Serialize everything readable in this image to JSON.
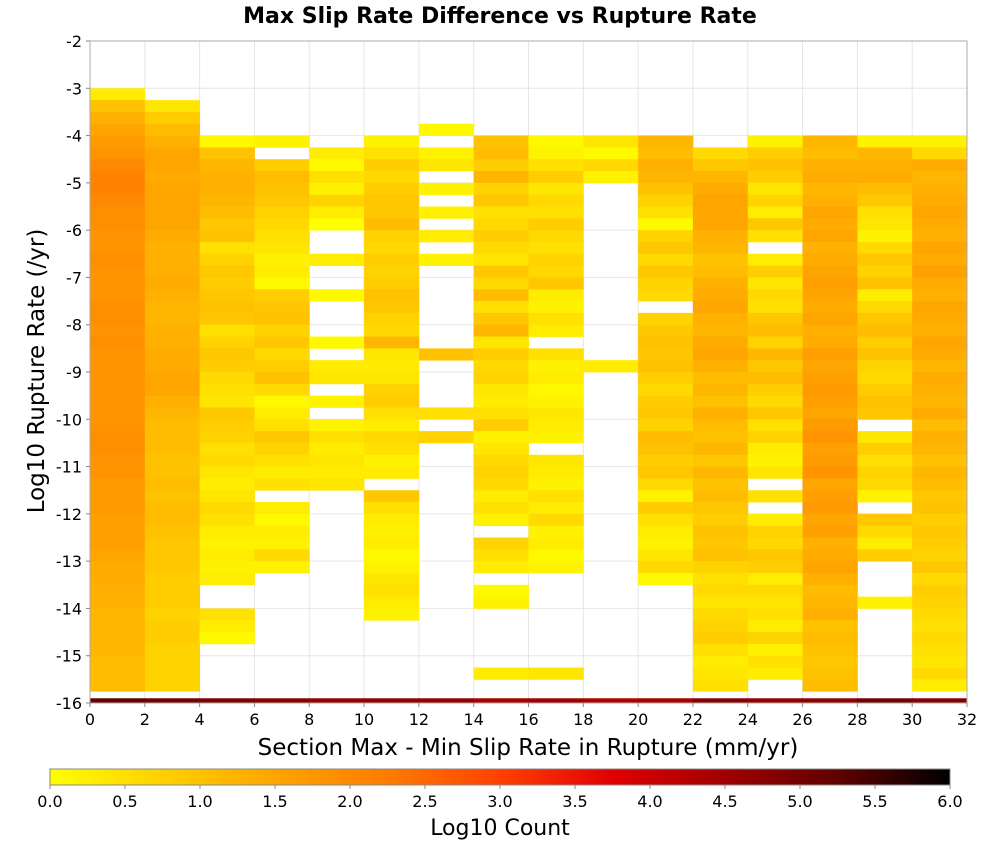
{
  "chart_data": {
    "type": "heatmap",
    "title": "Max Slip Rate Difference vs Rupture Rate",
    "xlabel": "Section Max - Min Slip Rate in Rupture (mm/yr)",
    "ylabel": "Log10 Rupture Rate (/yr)",
    "xlim": [
      0,
      32
    ],
    "ylim": [
      -16,
      -2
    ],
    "x_ticks": [
      "0",
      "2",
      "4",
      "6",
      "8",
      "10",
      "12",
      "14",
      "16",
      "18",
      "20",
      "22",
      "24",
      "26",
      "28",
      "30",
      "32"
    ],
    "y_ticks": [
      "-2",
      "-3",
      "-4",
      "-5",
      "-6",
      "-7",
      "-8",
      "-9",
      "-10",
      "-11",
      "-12",
      "-13",
      "-14",
      "-15",
      "-16"
    ],
    "x_bin_width": 2,
    "y_bin_height": 0.25,
    "grid": true,
    "colorbar": {
      "label": "Log10 Count",
      "min": 0.0,
      "max": 6.0,
      "ticks": [
        "0.0",
        "0.5",
        "1.0",
        "1.5",
        "2.0",
        "2.5",
        "3.0",
        "3.5",
        "4.0",
        "4.5",
        "5.0",
        "5.5",
        "6.0"
      ],
      "stops": [
        "#ffff00",
        "#ffd000",
        "#ffa500",
        "#ff7b00",
        "#ff4000",
        "#e00000",
        "#a00000",
        "#600000",
        "#000000"
      ]
    },
    "columns": [
      {
        "x": 0,
        "y_top": -3.0,
        "levels": [
          0.3,
          1.0,
          1.3,
          1.5,
          1.7,
          1.8,
          2.0,
          2.1,
          2.1,
          2.0,
          1.9,
          1.9,
          1.8,
          1.8,
          1.9,
          1.8,
          1.8,
          1.8,
          1.9,
          1.9,
          1.8,
          1.9,
          1.8,
          1.8,
          1.8,
          1.8,
          1.8,
          1.8,
          1.8,
          1.9,
          1.9,
          1.8,
          1.8,
          1.7,
          1.7,
          1.7,
          1.6,
          1.6,
          1.6,
          1.5,
          1.4,
          1.4,
          1.3,
          1.3,
          1.2,
          1.2,
          1.2,
          1.2,
          1.1,
          1.1,
          1.1,
          1.1
        ]
      },
      {
        "x": 2,
        "y_top": -3.25,
        "levels": [
          0.4,
          0.8,
          1.1,
          1.3,
          1.5,
          1.5,
          1.4,
          1.5,
          1.5,
          1.5,
          1.5,
          1.4,
          1.3,
          1.3,
          1.3,
          1.4,
          1.3,
          1.2,
          1.2,
          1.3,
          1.3,
          1.4,
          1.4,
          1.5,
          1.5,
          1.3,
          1.2,
          1.1,
          1.1,
          1.1,
          1.0,
          1.0,
          1.1,
          1.0,
          1.1,
          1.1,
          1.0,
          0.9,
          0.9,
          0.9,
          0.8,
          0.8,
          0.8,
          0.7,
          0.8,
          0.8,
          0.7,
          0.7,
          0.7,
          0.7,
          0.7
        ]
      },
      {
        "x": 4,
        "y_top": -4.0,
        "levels": [
          0.1,
          1.0,
          1.2,
          1.3,
          1.3,
          1.2,
          1.1,
          0.9,
          1.0,
          0.5,
          0.7,
          0.9,
          0.8,
          0.9,
          1.0,
          0.9,
          0.5,
          0.7,
          0.9,
          0.8,
          0.6,
          0.5,
          0.4,
          0.9,
          0.8,
          0.7,
          0.5,
          0.6,
          0.4,
          0.3,
          0.4,
          0.6,
          0.5,
          0.3,
          0.2,
          0.3,
          0.2,
          0.3,
          -1,
          -1,
          0.5,
          0.3,
          0.1,
          -1
        ]
      },
      {
        "x": 6,
        "y_top": -4.0,
        "levels": [
          0.2,
          -1,
          0.8,
          1.1,
          1.0,
          0.9,
          0.7,
          0.6,
          0.5,
          0.4,
          0.2,
          0.3,
          0.1,
          0.8,
          0.9,
          1.0,
          0.7,
          0.9,
          0.6,
          0.8,
          1.0,
          0.6,
          0.1,
          0.3,
          0.5,
          0.9,
          0.7,
          0.5,
          0.3,
          0.5,
          -1,
          0.3,
          0.1,
          0.3,
          0.2,
          0.6,
          0.2,
          -1
        ]
      },
      {
        "x": 8,
        "y_top": -4.25,
        "levels": [
          0.3,
          0.1,
          0.5,
          0.2,
          0.7,
          0.3,
          0.0,
          -1,
          -1,
          0.3,
          -1,
          -1,
          0.1,
          -1,
          -1,
          -1,
          0.1,
          -1,
          0.3,
          0.4,
          -1,
          0.2,
          -1,
          0.2,
          0.5,
          0.3,
          0.4,
          0.3,
          0.4
        ]
      },
      {
        "x": 10,
        "y_top": -4.0,
        "levels": [
          0.2,
          0.5,
          0.8,
          0.6,
          0.8,
          0.9,
          0.9,
          1.1,
          0.7,
          0.6,
          0.8,
          0.7,
          0.8,
          1.0,
          0.9,
          0.7,
          0.6,
          1.2,
          0.4,
          0.3,
          0.4,
          0.7,
          0.8,
          0.5,
          0.3,
          0.6,
          0.5,
          0.2,
          0.3,
          -1,
          0.9,
          0.5,
          0.3,
          0.2,
          0.3,
          0.1,
          0.2,
          0.4,
          0.5,
          0.3,
          0.2
        ]
      },
      {
        "x": 12,
        "y_top": -3.75,
        "levels": [
          0.1,
          -1,
          0.2,
          0.4,
          -1,
          0.2,
          -1,
          0.2,
          -1,
          0.3,
          -1,
          0.2,
          -1,
          -1,
          -1,
          -1,
          -1,
          -1,
          -1,
          1.0,
          -1,
          -1,
          -1,
          -1,
          0.5,
          -1,
          0.7
        ]
      },
      {
        "x": 14,
        "y_top": -4.0,
        "levels": [
          1.0,
          1.1,
          0.8,
          1.2,
          0.7,
          0.9,
          0.5,
          0.6,
          0.8,
          0.6,
          0.4,
          0.9,
          0.6,
          1.1,
          0.5,
          0.9,
          1.2,
          0.4,
          0.8,
          0.6,
          0.7,
          0.4,
          0.3,
          0.5,
          0.8,
          0.2,
          0.4,
          0.6,
          0.7,
          0.6,
          0.3,
          0.5,
          0.2,
          -1,
          0.7,
          0.5,
          0.3,
          -1,
          0.1,
          0.2,
          -1,
          -1,
          -1,
          -1,
          -1,
          0.3
        ]
      },
      {
        "x": 16,
        "y_top": -4.0,
        "levels": [
          0.1,
          0.2,
          0.5,
          0.8,
          0.4,
          0.6,
          0.5,
          0.8,
          0.6,
          0.5,
          0.7,
          0.6,
          0.9,
          0.3,
          0.2,
          0.5,
          0.3,
          -1,
          0.5,
          0.2,
          0.3,
          0.1,
          0.2,
          0.4,
          0.3,
          0.2,
          -1,
          0.4,
          0.3,
          0.2,
          0.5,
          0.3,
          0.6,
          0.2,
          0.3,
          0.1,
          0.2,
          -1,
          -1,
          -1,
          -1,
          -1,
          -1,
          -1,
          -1,
          0.4
        ]
      },
      {
        "x": 18,
        "y_top": -4.0,
        "levels": [
          0.4,
          0.1,
          0.6,
          0.2,
          -1,
          -1,
          -1,
          -1,
          -1,
          -1,
          -1,
          -1,
          -1,
          -1,
          -1,
          -1,
          -1,
          -1,
          -1,
          0.3
        ]
      },
      {
        "x": 20,
        "y_top": -4.0,
        "levels": [
          1.2,
          1.1,
          1.3,
          1.2,
          1.0,
          0.7,
          0.5,
          0.1,
          0.7,
          0.9,
          0.6,
          0.9,
          0.7,
          0.6,
          -1,
          0.7,
          0.9,
          1.0,
          0.9,
          1.0,
          0.8,
          0.6,
          0.8,
          0.9,
          0.7,
          1.1,
          1.0,
          0.8,
          0.9,
          0.6,
          0.2,
          0.8,
          0.5,
          0.3,
          0.2,
          0.4,
          0.6,
          0.1,
          -1
        ]
      },
      {
        "x": 22,
        "y_top": -4.25,
        "levels": [
          0.6,
          0.9,
          1.2,
          1.4,
          1.5,
          1.5,
          1.5,
          1.3,
          1.2,
          1.0,
          1.1,
          1.3,
          1.4,
          1.5,
          1.3,
          1.2,
          1.4,
          1.5,
          1.3,
          1.1,
          1.2,
          1.0,
          1.3,
          1.1,
          1.0,
          1.2,
          0.9,
          1.2,
          1.0,
          1.1,
          0.9,
          0.8,
          1.0,
          0.9,
          1.0,
          0.7,
          0.5,
          0.6,
          0.4,
          0.6,
          0.7,
          0.8,
          0.5,
          0.3,
          0.4,
          0.5,
          0.6,
          0.4
        ]
      },
      {
        "x": 24,
        "y_top": -4.0,
        "levels": [
          0.2,
          0.8,
          1.0,
          0.8,
          0.4,
          0.7,
          0.3,
          0.9,
          0.5,
          -1,
          0.3,
          0.8,
          0.4,
          0.6,
          0.5,
          0.9,
          1.1,
          0.7,
          1.2,
          0.9,
          1.1,
          0.8,
          0.6,
          0.9,
          0.5,
          0.7,
          0.3,
          0.2,
          0.4,
          -1,
          0.5,
          -1,
          0.3,
          0.7,
          0.6,
          0.9,
          0.8,
          0.3,
          0.6,
          0.4,
          0.5,
          0.3,
          0.7,
          0.2,
          0.5,
          0.3
        ]
      },
      {
        "x": 26,
        "y_top": -4.0,
        "levels": [
          1.2,
          1.1,
          1.3,
          1.4,
          1.2,
          1.3,
          1.5,
          1.4,
          1.5,
          1.3,
          1.4,
          1.5,
          1.6,
          1.5,
          1.4,
          1.5,
          1.3,
          1.4,
          1.6,
          1.5,
          1.6,
          1.7,
          1.6,
          1.5,
          1.7,
          1.8,
          1.6,
          1.7,
          1.8,
          1.5,
          1.6,
          1.7,
          1.5,
          1.6,
          1.3,
          1.4,
          1.5,
          1.3,
          1.1,
          1.2,
          1.3,
          1.0,
          1.1,
          1.0,
          0.9,
          1.0,
          1.1,
          0.9,
          1.0,
          0.8
        ]
      },
      {
        "x": 28,
        "y_top": -4.0,
        "levels": [
          0.2,
          1.2,
          1.3,
          1.4,
          1.1,
          0.9,
          0.5,
          0.4,
          0.2,
          0.6,
          0.9,
          0.7,
          1.0,
          0.3,
          0.6,
          0.9,
          1.1,
          0.8,
          1.0,
          0.7,
          0.6,
          0.8,
          1.0,
          0.9,
          -1,
          0.4,
          0.8,
          0.5,
          0.7,
          0.6,
          0.2,
          -1,
          0.9,
          0.6,
          0.3,
          0.8,
          -1,
          -1,
          -1,
          0.2,
          -1
        ]
      },
      {
        "x": 30,
        "y_top": -4.0,
        "levels": [
          0.2,
          0.6,
          1.4,
          1.2,
          1.3,
          1.4,
          1.5,
          1.4,
          1.3,
          1.5,
          1.4,
          1.6,
          1.4,
          1.3,
          1.5,
          1.4,
          1.3,
          1.5,
          1.4,
          1.2,
          1.4,
          1.3,
          1.2,
          1.4,
          1.1,
          1.3,
          1.2,
          1.0,
          1.2,
          1.1,
          0.9,
          1.0,
          0.8,
          0.9,
          0.8,
          0.7,
          0.9,
          0.6,
          0.8,
          0.7,
          0.6,
          0.5,
          0.6,
          0.5,
          0.4,
          0.6,
          0.3,
          0.4
        ]
      }
    ],
    "bottom_row": {
      "y": -16.0,
      "levels": [
        5.2,
        5.0,
        4.9,
        4.8,
        4.6,
        4.7,
        4.6,
        4.4,
        4.5,
        4.3,
        4.4,
        4.8,
        4.6,
        4.7,
        5.0,
        4.8
      ]
    }
  }
}
